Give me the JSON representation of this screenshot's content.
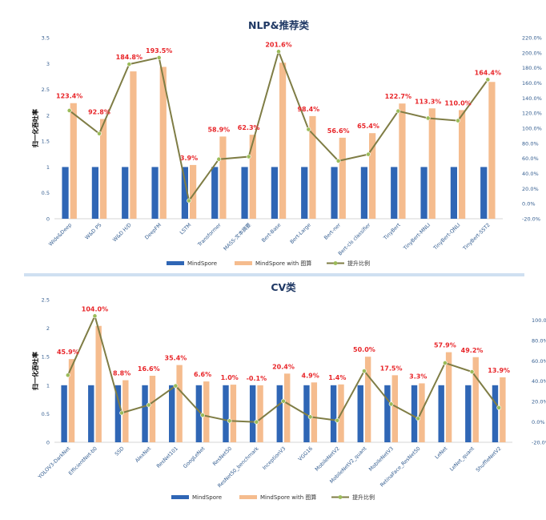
{
  "colors": {
    "mindspore": "#2f66b5",
    "graph": "#f5bc8e",
    "line": "#7f7d45",
    "marker": "#9bbb59",
    "label": "#e8262a",
    "axis_text": "#365f91",
    "title": "#1f3864"
  },
  "legend": {
    "mindspore": "MindSpore",
    "graph": "MindSpore with 图算",
    "ratio": "提升比例"
  },
  "chart_data": [
    {
      "type": "bar",
      "title": "NLP&推荐类",
      "ylabel": "归一化吞吐率",
      "ylim": [
        0,
        3.5
      ],
      "yticks": [
        "0",
        "0.5",
        "1",
        "1.5",
        "2",
        "2.5",
        "3",
        "3.5"
      ],
      "y2lim": [
        -20,
        220
      ],
      "y2ticks": [
        "-20.0%",
        "0.0%",
        "20.0%",
        "40.0%",
        "60.0%",
        "80.0%",
        "100.0%",
        "120.0%",
        "140.0%",
        "160.0%",
        "180.0%",
        "200.0%",
        "220.0%"
      ],
      "grid": false,
      "legend_position": "bottom",
      "categories": [
        "Wide&Deep",
        "W&D PS",
        "W&D H/D",
        "DeepFM",
        "LSTM",
        "Transformer",
        "MASS-文本摘要",
        "Bert-Base",
        "Bert-Large",
        "Bert-ner",
        "Bert-cls classifier",
        "TinyBert",
        "TinyBert-MNLI",
        "TinyBert-QNLI",
        "TinyBert-SST2"
      ],
      "series": [
        {
          "name": "MindSpore",
          "values": [
            1,
            1,
            1,
            1,
            1,
            1,
            1,
            1,
            1,
            1,
            1,
            1,
            1,
            1,
            1
          ]
        },
        {
          "name": "MindSpore with 图算",
          "values": [
            2.234,
            1.928,
            2.848,
            2.935,
            1.039,
            1.589,
            1.623,
            3.016,
            1.984,
            1.566,
            1.654,
            2.227,
            2.133,
            2.1,
            2.644
          ]
        },
        {
          "name": "提升比例",
          "axis": "secondary",
          "values": [
            123.4,
            92.8,
            184.8,
            193.5,
            3.9,
            58.9,
            62.3,
            201.6,
            98.4,
            56.6,
            65.4,
            122.7,
            113.3,
            110.0,
            164.4
          ]
        }
      ],
      "data_labels": [
        "123.4%",
        "92.8%",
        "184.8%",
        "193.5%",
        "3.9%",
        "58.9%",
        "62.3%",
        "201.6%",
        "98.4%",
        "56.6%",
        "65.4%",
        "122.7%",
        "113.3%",
        "110.0%",
        "164.4%"
      ]
    },
    {
      "type": "bar",
      "title": "CV类",
      "ylabel": "归一化吞吐率",
      "ylim": [
        0,
        2.5
      ],
      "yticks": [
        "0",
        "0.5",
        "1",
        "1.5",
        "2",
        "2.5"
      ],
      "y2lim": [
        -20,
        120
      ],
      "y2ticks": [
        "-20.0%",
        "0.0%",
        "20.0%",
        "40.0%",
        "60.0%",
        "80.0%",
        "100.0%"
      ],
      "grid": false,
      "legend_position": "bottom",
      "categories": [
        "YOLOV3-DarkNet",
        "EfficientNet-b0",
        "SSD",
        "AlexNet",
        "ResNet101",
        "GoogLeNet",
        "ResNet50",
        "ResNet50_benchmark",
        "InceptionV3",
        "VGG16",
        "MobileNetV2",
        "MobileNetV2_quant",
        "MobileNetV3",
        "RetinaFace_ResNet50",
        "LeNet",
        "LeNet_quant",
        "ShuffleNetV2"
      ],
      "series": [
        {
          "name": "MindSpore",
          "values": [
            1,
            1,
            1,
            1,
            1,
            1,
            1,
            1,
            1,
            1,
            1,
            1,
            1,
            1,
            1,
            1,
            1
          ]
        },
        {
          "name": "MindSpore with 图算",
          "values": [
            1.459,
            2.04,
            1.088,
            1.166,
            1.354,
            1.066,
            1.01,
            0.999,
            1.204,
            1.049,
            1.014,
            1.5,
            1.175,
            1.033,
            1.579,
            1.492,
            1.139
          ]
        },
        {
          "name": "提升比例",
          "axis": "secondary",
          "values": [
            45.9,
            104.0,
            8.8,
            16.6,
            35.4,
            6.6,
            1.0,
            -0.1,
            20.4,
            4.9,
            1.4,
            50.0,
            17.5,
            3.3,
            57.9,
            49.2,
            13.9
          ]
        }
      ],
      "data_labels": [
        "45.9%",
        "104.0%",
        "8.8%",
        "16.6%",
        "35.4%",
        "6.6%",
        "1.0%",
        "-0.1%",
        "20.4%",
        "4.9%",
        "1.4%",
        "50.0%",
        "17.5%",
        "3.3%",
        "57.9%",
        "49.2%",
        "13.9%"
      ]
    }
  ]
}
